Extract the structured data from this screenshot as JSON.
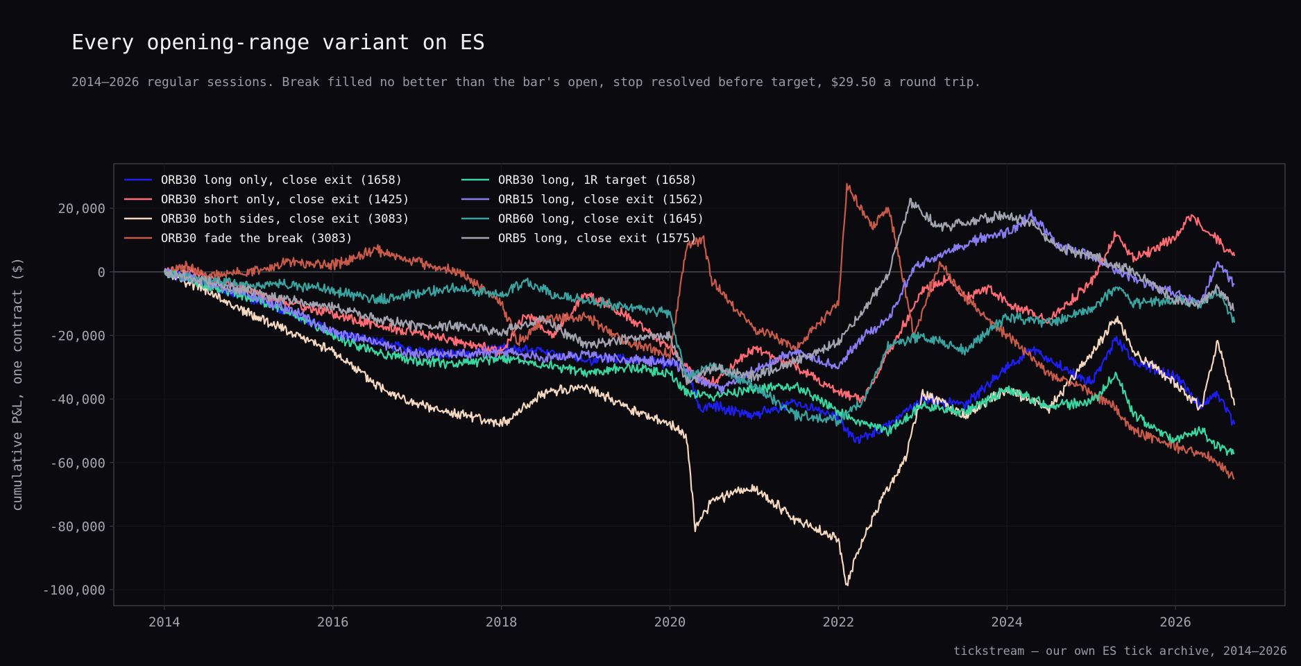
{
  "title": "Every opening-range variant on ES",
  "subtitle": "2014–2026 regular sessions. Break filled no better than the bar's open, stop resolved before target, $29.50 a round trip.",
  "footer": "tickstream — our own ES tick archive, 2014–2026",
  "chart_data": {
    "type": "line",
    "ylabel": "cumulative P&L, one contract ($)",
    "xlim": [
      2013.4,
      2027.3
    ],
    "ylim": [
      -105000,
      34000
    ],
    "x_ticks": [
      2014,
      2016,
      2018,
      2020,
      2022,
      2024,
      2026
    ],
    "x_tick_labels": [
      "2014",
      "2016",
      "2018",
      "2020",
      "2022",
      "2024",
      "2026"
    ],
    "y_ticks": [
      20000,
      0,
      -20000,
      -40000,
      -60000,
      -80000,
      -100000
    ],
    "y_tick_labels": [
      "20,000",
      "0",
      "-20,000",
      "-40,000",
      "-60,000",
      "-80,000",
      "-100,000"
    ],
    "grid": true,
    "legend_position": "top-left",
    "legend_columns": 2,
    "colors": {
      "background": "#0b0b0f",
      "axis": "#3a3a42",
      "zero_line": "#4a4a52"
    },
    "series": [
      {
        "name": "ORB30 long only, close exit  (1658)",
        "color": "#1e1ef2",
        "x": [
          2014.0,
          2014.5,
          2015.0,
          2015.5,
          2016.0,
          2016.5,
          2017.0,
          2017.5,
          2018.0,
          2018.5,
          2019.0,
          2019.5,
          2020.0,
          2020.2,
          2020.35,
          2020.5,
          2021.0,
          2021.5,
          2022.0,
          2022.2,
          2022.5,
          2023.0,
          2023.5,
          2024.0,
          2024.3,
          2024.5,
          2025.0,
          2025.3,
          2025.5,
          2026.0,
          2026.3,
          2026.5,
          2026.7
        ],
        "y": [
          0,
          -4000,
          -8000,
          -13000,
          -19000,
          -22000,
          -25000,
          -26000,
          -24000,
          -25000,
          -28000,
          -27000,
          -29000,
          -30000,
          -43000,
          -42000,
          -45000,
          -41000,
          -46000,
          -53000,
          -50000,
          -40000,
          -42000,
          -30000,
          -24000,
          -28000,
          -35000,
          -21000,
          -28000,
          -33000,
          -42000,
          -38000,
          -48000
        ]
      },
      {
        "name": "ORB30 short only, close exit  (1425)",
        "color": "#ff6b74",
        "x": [
          2014.0,
          2014.2,
          2014.5,
          2015.0,
          2015.5,
          2016.0,
          2016.5,
          2017.0,
          2017.5,
          2018.0,
          2018.3,
          2018.6,
          2019.0,
          2019.5,
          2020.0,
          2020.3,
          2020.5,
          2021.0,
          2021.5,
          2022.0,
          2022.3,
          2022.6,
          2023.0,
          2023.3,
          2023.5,
          2023.8,
          2024.0,
          2024.3,
          2024.5,
          2025.0,
          2025.3,
          2025.5,
          2025.8,
          2026.0,
          2026.2,
          2026.4,
          2026.7
        ],
        "y": [
          0,
          1000,
          -2000,
          -6000,
          -10000,
          -13000,
          -17000,
          -19000,
          -22000,
          -25000,
          -13000,
          -20000,
          -7000,
          -14000,
          -24000,
          -33000,
          -35000,
          -24000,
          -30000,
          -38000,
          -40000,
          -25000,
          -6000,
          -2000,
          -8000,
          -5000,
          -10000,
          -13000,
          -15000,
          -3000,
          12000,
          4000,
          8000,
          11000,
          18000,
          12000,
          5000
        ]
      },
      {
        "name": "ORB30 both sides, close exit  (3083)",
        "color": "#f5d8bf",
        "x": [
          2014.0,
          2014.5,
          2015.0,
          2015.5,
          2016.0,
          2016.5,
          2017.0,
          2017.5,
          2018.0,
          2018.5,
          2019.0,
          2019.5,
          2020.0,
          2020.2,
          2020.3,
          2020.5,
          2021.0,
          2021.5,
          2022.0,
          2022.1,
          2022.2,
          2022.5,
          2022.8,
          2023.0,
          2023.5,
          2024.0,
          2024.5,
          2025.0,
          2025.3,
          2025.5,
          2026.0,
          2026.3,
          2026.5,
          2026.7
        ],
        "y": [
          0,
          -6000,
          -13000,
          -19000,
          -25000,
          -35000,
          -42000,
          -45000,
          -48000,
          -38000,
          -36000,
          -43000,
          -48000,
          -52000,
          -80000,
          -72000,
          -68000,
          -78000,
          -84000,
          -99000,
          -90000,
          -72000,
          -58000,
          -38000,
          -45000,
          -37000,
          -43000,
          -26000,
          -14000,
          -25000,
          -35000,
          -43000,
          -22000,
          -42000
        ]
      },
      {
        "name": "ORB30 fade the break  (3083)",
        "color": "#c85a4a",
        "x": [
          2014.0,
          2014.3,
          2014.5,
          2015.0,
          2015.5,
          2016.0,
          2016.5,
          2017.0,
          2017.5,
          2018.0,
          2018.2,
          2018.5,
          2019.0,
          2019.5,
          2020.0,
          2020.2,
          2020.4,
          2020.5,
          2021.0,
          2021.5,
          2022.0,
          2022.1,
          2022.4,
          2022.6,
          2022.9,
          2023.2,
          2023.5,
          2023.8,
          2024.0,
          2024.5,
          2025.0,
          2025.3,
          2025.5,
          2026.0,
          2026.3,
          2026.5,
          2026.7
        ],
        "y": [
          0,
          2000,
          -1000,
          0,
          3000,
          2000,
          7000,
          3000,
          0,
          -10000,
          -22000,
          -15000,
          -14000,
          -22000,
          -26000,
          8000,
          10000,
          -3000,
          -18000,
          -24000,
          -10000,
          27000,
          14000,
          20000,
          -20000,
          3000,
          -8000,
          -16000,
          -20000,
          -32000,
          -38000,
          -43000,
          -50000,
          -55000,
          -57000,
          -60000,
          -65000
        ]
      },
      {
        "name": "ORB30 long, 1R target  (1658)",
        "color": "#3ad6a0",
        "x": [
          2014.0,
          2014.5,
          2015.0,
          2015.5,
          2016.0,
          2016.5,
          2017.0,
          2017.5,
          2018.0,
          2018.5,
          2019.0,
          2019.5,
          2020.0,
          2020.2,
          2020.5,
          2021.0,
          2021.5,
          2022.0,
          2022.3,
          2022.6,
          2023.0,
          2023.5,
          2024.0,
          2024.5,
          2025.0,
          2025.3,
          2025.5,
          2026.0,
          2026.3,
          2026.5,
          2026.7
        ],
        "y": [
          0,
          -4000,
          -8000,
          -13000,
          -20000,
          -25000,
          -28000,
          -29000,
          -27000,
          -29000,
          -32000,
          -30000,
          -32000,
          -38000,
          -39000,
          -37000,
          -36000,
          -44000,
          -48000,
          -50000,
          -42000,
          -44000,
          -37000,
          -42000,
          -41000,
          -32000,
          -45000,
          -53000,
          -50000,
          -55000,
          -57000
        ]
      },
      {
        "name": "ORB15 long, close exit  (1562)",
        "color": "#8a7cf2",
        "x": [
          2014.0,
          2014.5,
          2015.0,
          2015.5,
          2016.0,
          2016.5,
          2017.0,
          2017.5,
          2018.0,
          2018.5,
          2019.0,
          2019.5,
          2020.0,
          2020.3,
          2020.6,
          2021.0,
          2021.5,
          2022.0,
          2022.3,
          2022.6,
          2022.9,
          2023.2,
          2023.6,
          2024.0,
          2024.3,
          2024.6,
          2025.0,
          2025.3,
          2025.5,
          2026.0,
          2026.3,
          2026.5,
          2026.7
        ],
        "y": [
          0,
          -3000,
          -7000,
          -12000,
          -19000,
          -22000,
          -26000,
          -26000,
          -25000,
          -27000,
          -26000,
          -28000,
          -28000,
          -33000,
          -37000,
          -31000,
          -25000,
          -30000,
          -20000,
          -15000,
          2000,
          5000,
          10000,
          12000,
          18000,
          8000,
          5000,
          0,
          -2000,
          -7000,
          -10000,
          3000,
          -4000
        ]
      },
      {
        "name": "ORB60 long, close exit  (1645)",
        "color": "#3aa3a0",
        "x": [
          2014.0,
          2014.5,
          2015.0,
          2015.5,
          2016.0,
          2016.5,
          2017.0,
          2017.5,
          2018.0,
          2018.3,
          2018.6,
          2019.0,
          2019.5,
          2020.0,
          2020.2,
          2020.5,
          2021.0,
          2021.5,
          2022.0,
          2022.3,
          2022.6,
          2023.0,
          2023.5,
          2024.0,
          2024.5,
          2025.0,
          2025.3,
          2025.5,
          2026.0,
          2026.3,
          2026.5,
          2026.7
        ],
        "y": [
          0,
          -3000,
          -4000,
          -4000,
          -6000,
          -9000,
          -7000,
          -5000,
          -7000,
          -3000,
          -7000,
          -9000,
          -11000,
          -13000,
          -34000,
          -29000,
          -36000,
          -45000,
          -47000,
          -40000,
          -23000,
          -20000,
          -25000,
          -14000,
          -16000,
          -12000,
          -5000,
          -10000,
          -9000,
          -10000,
          -6000,
          -16000
        ]
      },
      {
        "name": "ORB5 long, close exit  (1575)",
        "color": "#a4a4b0",
        "x": [
          2014.0,
          2014.5,
          2015.0,
          2015.5,
          2016.0,
          2016.5,
          2017.0,
          2017.5,
          2018.0,
          2018.5,
          2019.0,
          2019.5,
          2020.0,
          2020.2,
          2020.5,
          2021.0,
          2021.5,
          2022.0,
          2022.3,
          2022.6,
          2022.85,
          2023.2,
          2023.6,
          2024.0,
          2024.3,
          2024.6,
          2025.0,
          2025.3,
          2025.5,
          2026.0,
          2026.3,
          2026.5,
          2026.7
        ],
        "y": [
          0,
          -3000,
          -6000,
          -9000,
          -11000,
          -15000,
          -17000,
          -17000,
          -19000,
          -15000,
          -23000,
          -21000,
          -20000,
          -35000,
          -30000,
          -33000,
          -28000,
          -22000,
          -12000,
          0,
          22000,
          14000,
          16000,
          18000,
          15000,
          8000,
          5000,
          2000,
          0,
          -9000,
          -10000,
          -5000,
          -12000
        ]
      }
    ]
  }
}
